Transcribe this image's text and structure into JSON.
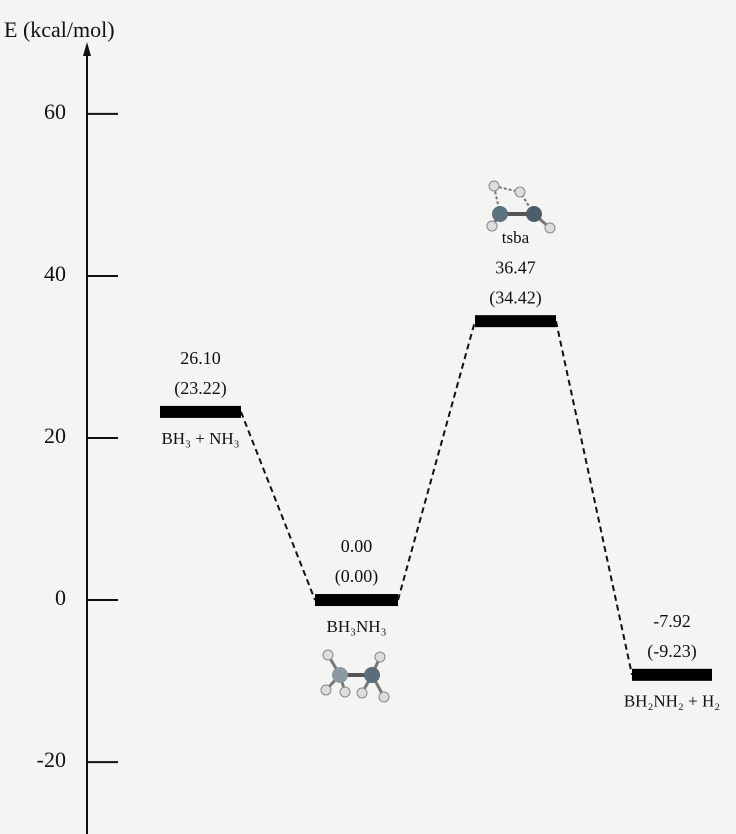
{
  "chart_data": {
    "type": "energy-level",
    "y_label": "E (kcal/mol)",
    "categories": [
      "BH₃ + NH₃",
      "BH₃NH₃",
      "tsba",
      "BH₂NH₂ + H₂"
    ],
    "series": [
      {
        "values": [
          26.1,
          0.0,
          36.47,
          -7.92
        ],
        "value_labels": [
          "26.10",
          "0.00",
          "36.47",
          "-7.92"
        ]
      },
      {
        "values": [
          23.22,
          0.0,
          34.42,
          -9.23
        ],
        "value_labels": [
          "(23.22)",
          "(0.00)",
          "(34.42)",
          "(-9.23)"
        ],
        "color": "#000000"
      }
    ],
    "ylim": [
      -29,
      69
    ],
    "yticks": [
      60,
      40,
      20,
      0,
      -20
    ]
  }
}
